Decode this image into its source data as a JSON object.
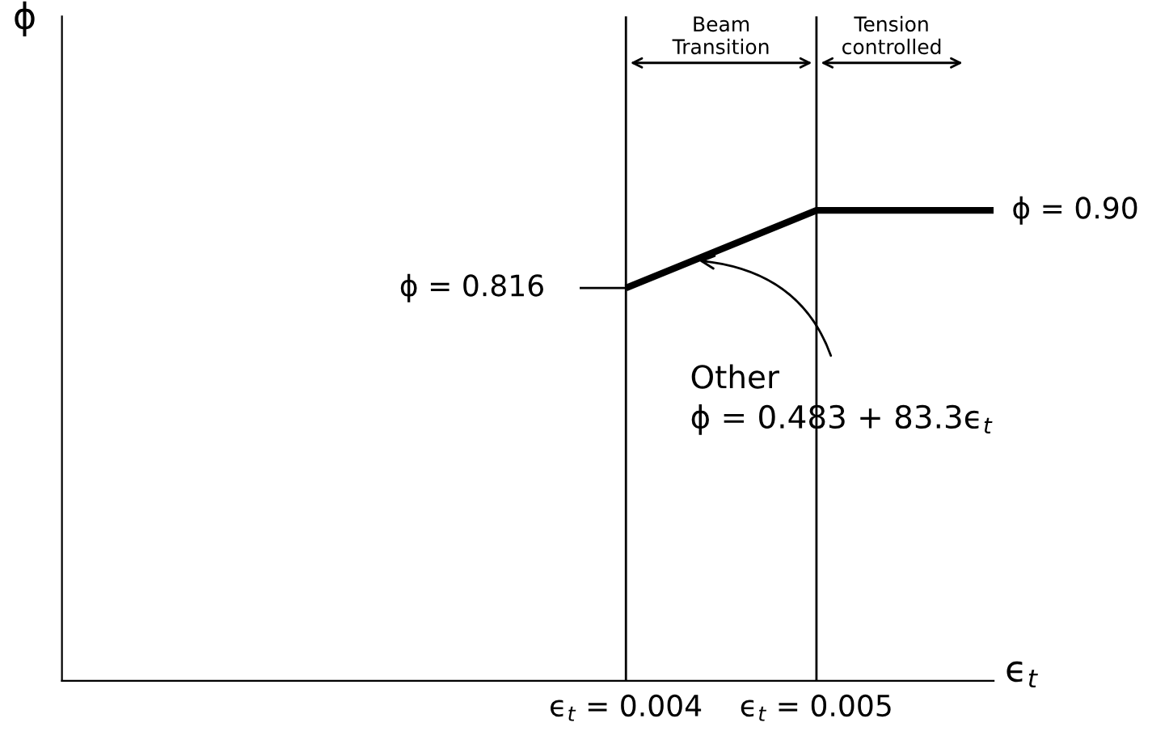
{
  "chart_data": {
    "type": "line",
    "xlabel": "ϵ$_{t}$",
    "ylabel": "ϕ",
    "x": [
      0.004,
      0.005,
      0.00593
    ],
    "series": [
      {
        "color": "#000000",
        "values": [
          0.816,
          0.9,
          0.9
        ],
        "value_labels": [
          "ϕ = 0.816",
          null,
          "ϕ = 0.90"
        ]
      }
    ],
    "xlim": [
      0.00104,
      0.00593
    ],
    "ylim": [
      0.391,
      1.11
    ],
    "xticks": [
      {
        "value": 0.004,
        "label": "ϵ$_{t}$ = 0.004"
      },
      {
        "value": 0.005,
        "label": "ϵ$_{t}$ = 0.005"
      }
    ],
    "tick_labels": "x",
    "grid": false,
    "legend": false,
    "ref_lines": [
      {
        "axis": "x",
        "value": 0.004,
        "color": "#000000"
      },
      {
        "axis": "x",
        "value": 0.005,
        "color": "#000000"
      }
    ],
    "annotations": [
      {
        "text": "Other\nϕ = 0.483 + 83.3ϵ$_{t}$",
        "x": 0.00436,
        "y": 0.846
      },
      "Beam\nTransition",
      "Tension\ncontrolled"
    ]
  }
}
